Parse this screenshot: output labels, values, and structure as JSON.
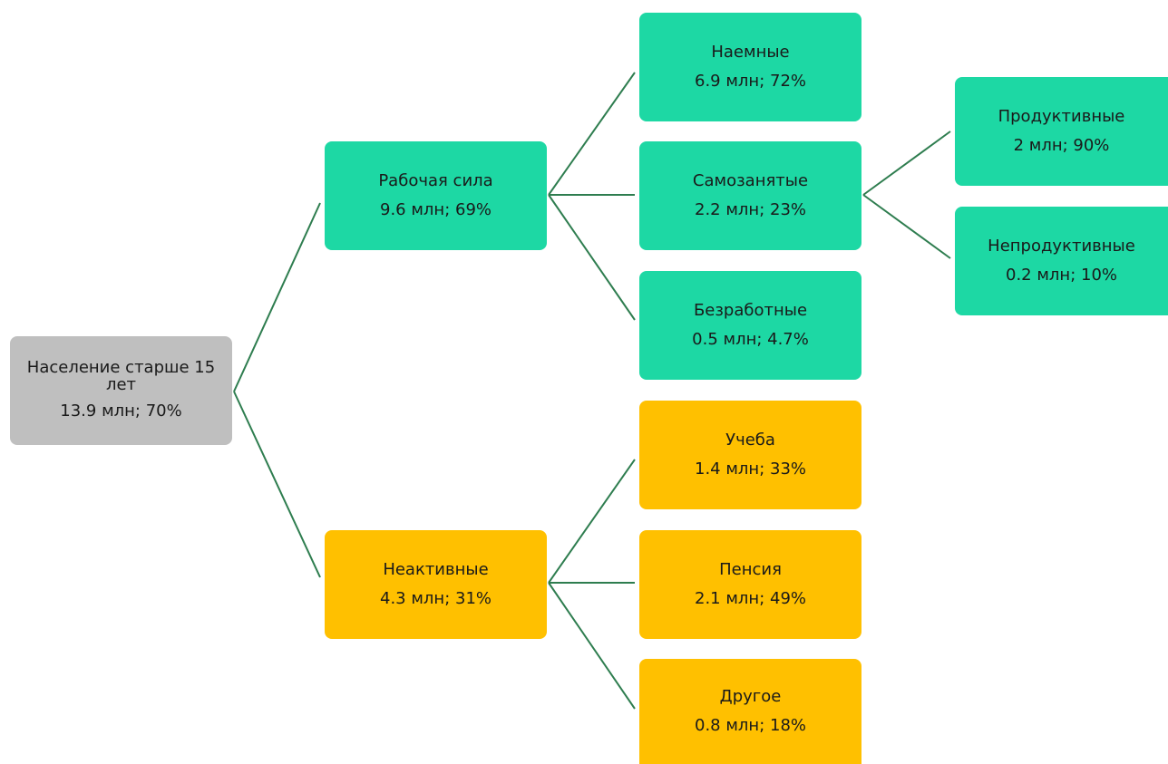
{
  "nodes": {
    "root": {
      "label": "Население старше 15 лет",
      "value": "13.9 млн; 70%",
      "color": "#bfbfbf"
    },
    "labor": {
      "label": "Рабочая сила",
      "value": "9.6 млн; 69%",
      "color": "#1dd8a4"
    },
    "inactive": {
      "label": "Неактивные",
      "value": "4.3 млн; 31%",
      "color": "#ffc000"
    },
    "hired": {
      "label": "Наемные",
      "value": "6.9 млн; 72%",
      "color": "#1dd8a4"
    },
    "self": {
      "label": "Самозанятые",
      "value": "2.2 млн; 23%",
      "color": "#1dd8a4"
    },
    "unemp": {
      "label": "Безработные",
      "value": "0.5 млн; 4.7%",
      "color": "#1dd8a4"
    },
    "study": {
      "label": "Учеба",
      "value": "1.4 млн; 33%",
      "color": "#ffc000"
    },
    "pension": {
      "label": "Пенсия",
      "value": "2.1 млн; 49%",
      "color": "#ffc000"
    },
    "other": {
      "label": "Другое",
      "value": "0.8 млн; 18%",
      "color": "#ffc000"
    },
    "prod": {
      "label": "Продуктивные",
      "value": "2 млн; 90%",
      "color": "#1dd8a4"
    },
    "unprod": {
      "label": "Непродуктивные",
      "value": "0.2 млн; 10%",
      "color": "#1dd8a4"
    }
  },
  "edges": [
    [
      "root",
      "labor"
    ],
    [
      "root",
      "inactive"
    ],
    [
      "labor",
      "hired"
    ],
    [
      "labor",
      "self"
    ],
    [
      "labor",
      "unemp"
    ],
    [
      "inactive",
      "study"
    ],
    [
      "inactive",
      "pension"
    ],
    [
      "inactive",
      "other"
    ],
    [
      "self",
      "prod"
    ],
    [
      "self",
      "unprod"
    ]
  ],
  "connector_color": "#2e7d4f"
}
